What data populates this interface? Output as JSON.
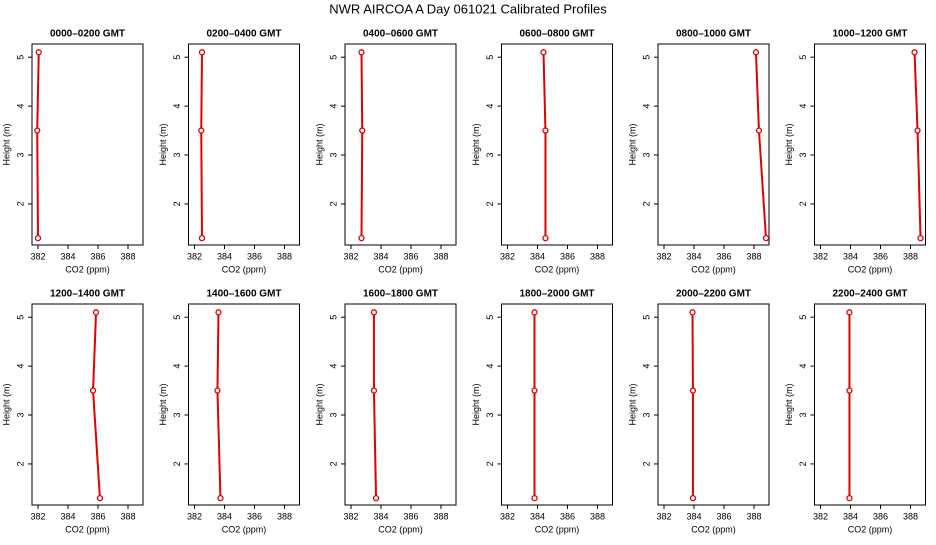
{
  "title": "NWR AIRCOA A  Day 061021  Calibrated Profiles",
  "chart_data": [
    {
      "type": "line",
      "title": "0000–0200 GMT",
      "xlabel": "CO2 (ppm)",
      "ylabel": "Height (m)",
      "color": "#e00000",
      "x": [
        382.0,
        381.95,
        382.05
      ],
      "values": [
        1.3,
        3.5,
        5.1
      ],
      "xlim": [
        381.6,
        389.0
      ],
      "ylim": [
        1.16,
        5.27
      ],
      "xticks": [
        382,
        384,
        386,
        388
      ],
      "yticks": [
        2,
        3,
        4,
        5
      ]
    },
    {
      "type": "line",
      "title": "0200–0400 GMT",
      "xlabel": "CO2 (ppm)",
      "ylabel": "Height (m)",
      "color": "#e00000",
      "x": [
        382.5,
        382.45,
        382.5
      ],
      "values": [
        1.3,
        3.5,
        5.1
      ],
      "xlim": [
        381.6,
        389.0
      ],
      "ylim": [
        1.16,
        5.27
      ],
      "xticks": [
        382,
        384,
        386,
        388
      ],
      "yticks": [
        2,
        3,
        4,
        5
      ]
    },
    {
      "type": "line",
      "title": "0400–0600 GMT",
      "xlabel": "CO2 (ppm)",
      "ylabel": "Height (m)",
      "color": "#e00000",
      "x": [
        382.7,
        382.75,
        382.7
      ],
      "values": [
        1.3,
        3.5,
        5.1
      ],
      "xlim": [
        381.6,
        389.0
      ],
      "ylim": [
        1.16,
        5.27
      ],
      "xticks": [
        382,
        384,
        386,
        388
      ],
      "yticks": [
        2,
        3,
        4,
        5
      ]
    },
    {
      "type": "line",
      "title": "0600–0800 GMT",
      "xlabel": "CO2 (ppm)",
      "ylabel": "Height (m)",
      "color": "#e00000",
      "x": [
        384.53,
        384.53,
        384.4
      ],
      "values": [
        1.3,
        3.5,
        5.1
      ],
      "xlim": [
        381.6,
        389.0
      ],
      "ylim": [
        1.16,
        5.27
      ],
      "xticks": [
        382,
        384,
        386,
        388
      ],
      "yticks": [
        2,
        3,
        4,
        5
      ]
    },
    {
      "type": "line",
      "title": "0800–1000 GMT",
      "xlabel": "CO2 (ppm)",
      "ylabel": "Height (m)",
      "color": "#e00000",
      "x": [
        388.8,
        388.33,
        388.13
      ],
      "values": [
        1.3,
        3.5,
        5.1
      ],
      "xlim": [
        381.6,
        389.0
      ],
      "ylim": [
        1.16,
        5.27
      ],
      "xticks": [
        382,
        384,
        386,
        388
      ],
      "yticks": [
        2,
        3,
        4,
        5
      ]
    },
    {
      "type": "line",
      "title": "1000–1200 GMT",
      "xlabel": "CO2 (ppm)",
      "ylabel": "Height (m)",
      "color": "#e00000",
      "x": [
        388.67,
        388.47,
        388.27
      ],
      "values": [
        1.3,
        3.5,
        5.1
      ],
      "xlim": [
        381.6,
        389.0
      ],
      "ylim": [
        1.16,
        5.27
      ],
      "xticks": [
        382,
        384,
        386,
        388
      ],
      "yticks": [
        2,
        3,
        4,
        5
      ]
    },
    {
      "type": "line",
      "title": "1200–1400 GMT",
      "xlabel": "CO2 (ppm)",
      "ylabel": "Height (m)",
      "color": "#e00000",
      "x": [
        386.13,
        385.67,
        385.87
      ],
      "values": [
        1.3,
        3.5,
        5.1
      ],
      "xlim": [
        381.6,
        389.0
      ],
      "ylim": [
        1.16,
        5.27
      ],
      "xticks": [
        382,
        384,
        386,
        388
      ],
      "yticks": [
        2,
        3,
        4,
        5
      ]
    },
    {
      "type": "line",
      "title": "1400–1600 GMT",
      "xlabel": "CO2 (ppm)",
      "ylabel": "Height (m)",
      "color": "#e00000",
      "x": [
        383.73,
        383.53,
        383.6
      ],
      "values": [
        1.3,
        3.5,
        5.1
      ],
      "xlim": [
        381.6,
        389.0
      ],
      "ylim": [
        1.16,
        5.27
      ],
      "xticks": [
        382,
        384,
        386,
        388
      ],
      "yticks": [
        2,
        3,
        4,
        5
      ]
    },
    {
      "type": "line",
      "title": "1600–1800 GMT",
      "xlabel": "CO2 (ppm)",
      "ylabel": "Height (m)",
      "color": "#e00000",
      "x": [
        383.67,
        383.53,
        383.53
      ],
      "values": [
        1.3,
        3.5,
        5.1
      ],
      "xlim": [
        381.6,
        389.0
      ],
      "ylim": [
        1.16,
        5.27
      ],
      "xticks": [
        382,
        384,
        386,
        388
      ],
      "yticks": [
        2,
        3,
        4,
        5
      ]
    },
    {
      "type": "line",
      "title": "1800–2000 GMT",
      "xlabel": "CO2 (ppm)",
      "ylabel": "Height (m)",
      "color": "#e00000",
      "x": [
        383.8,
        383.8,
        383.8
      ],
      "values": [
        1.3,
        3.5,
        5.1
      ],
      "xlim": [
        381.6,
        389.0
      ],
      "ylim": [
        1.16,
        5.27
      ],
      "xticks": [
        382,
        384,
        386,
        388
      ],
      "yticks": [
        2,
        3,
        4,
        5
      ]
    },
    {
      "type": "line",
      "title": "2000–2200 GMT",
      "xlabel": "CO2 (ppm)",
      "ylabel": "Height (m)",
      "color": "#e00000",
      "x": [
        383.93,
        383.93,
        383.9
      ],
      "values": [
        1.3,
        3.5,
        5.1
      ],
      "xlim": [
        381.6,
        389.0
      ],
      "ylim": [
        1.16,
        5.27
      ],
      "xticks": [
        382,
        384,
        386,
        388
      ],
      "yticks": [
        2,
        3,
        4,
        5
      ]
    },
    {
      "type": "line",
      "title": "2200–2400 GMT",
      "xlabel": "CO2 (ppm)",
      "ylabel": "Height (m)",
      "color": "#e00000",
      "x": [
        383.93,
        383.93,
        383.93
      ],
      "values": [
        1.3,
        3.5,
        5.1
      ],
      "xlim": [
        381.6,
        389.0
      ],
      "ylim": [
        1.16,
        5.27
      ],
      "xticks": [
        382,
        384,
        386,
        388
      ],
      "yticks": [
        2,
        3,
        4,
        5
      ]
    }
  ]
}
